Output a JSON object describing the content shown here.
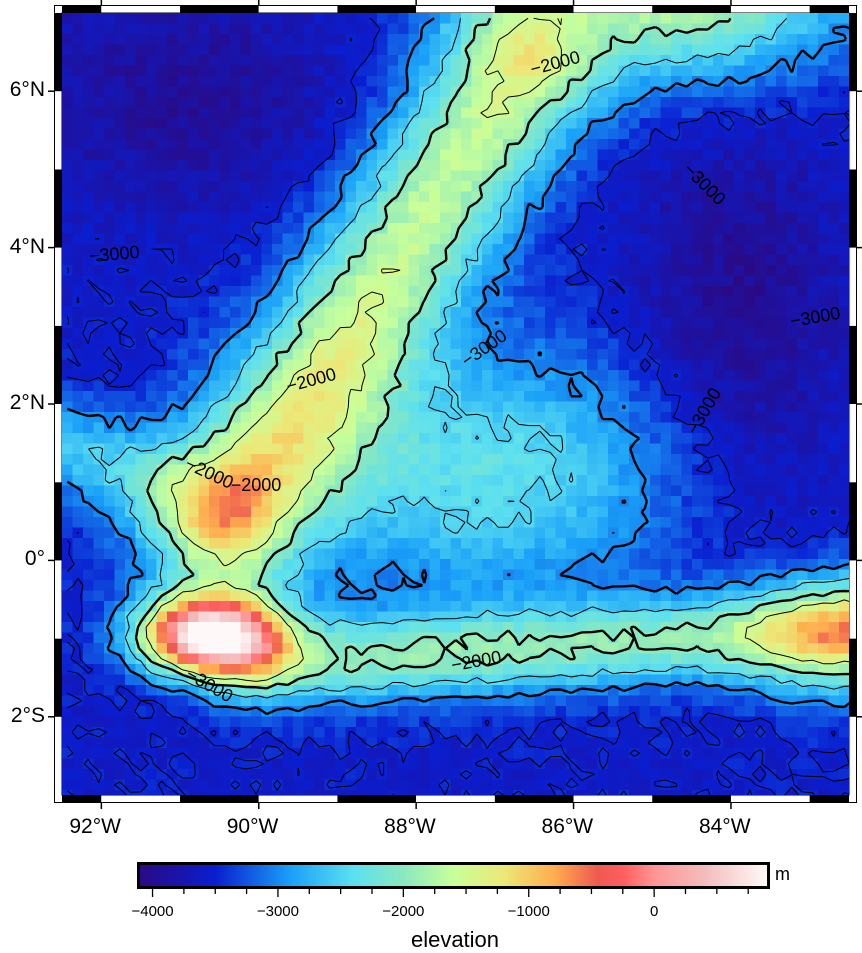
{
  "map": {
    "region": {
      "lon_min": -92.5,
      "lon_max": -82.5,
      "lat_min": -3,
      "lat_max": 7
    },
    "x_ticks": [
      {
        "lon": -92,
        "label": "92°W"
      },
      {
        "lon": -90,
        "label": "90°W"
      },
      {
        "lon": -88,
        "label": "88°W"
      },
      {
        "lon": -86,
        "label": "86°W"
      },
      {
        "lon": -84,
        "label": "84°W"
      }
    ],
    "y_ticks": [
      {
        "lat": 6,
        "label": "6°N"
      },
      {
        "lat": 4,
        "label": "4°N"
      },
      {
        "lat": 2,
        "label": "2°N"
      },
      {
        "lat": 0,
        "label": "0°"
      },
      {
        "lat": -2,
        "label": "2°S"
      }
    ],
    "contour_labels": [
      {
        "text": "−2000",
        "lon": -86.2,
        "lat": 6.35,
        "angle": -15
      },
      {
        "text": "−3000",
        "lon": -84.3,
        "lat": 4.8,
        "angle": 45
      },
      {
        "text": "−3000",
        "lon": -91.8,
        "lat": 3.9,
        "angle": -5
      },
      {
        "text": "−3000",
        "lon": -87.1,
        "lat": 2.7,
        "angle": -35
      },
      {
        "text": "−3000",
        "lon": -82.9,
        "lat": 3.1,
        "angle": -10
      },
      {
        "text": "−3000",
        "lon": -84.3,
        "lat": 1.9,
        "angle": -60
      },
      {
        "text": "−2000",
        "lon": -89.3,
        "lat": 2.3,
        "angle": -15
      },
      {
        "text": "−2000",
        "lon": -90.6,
        "lat": 1.1,
        "angle": 25
      },
      {
        "text": "−2000",
        "lon": -90.0,
        "lat": 0.95,
        "angle": 0
      },
      {
        "text": "−3000",
        "lon": -90.6,
        "lat": -1.6,
        "angle": 30
      },
      {
        "text": "−2000",
        "lon": -87.2,
        "lat": -1.3,
        "angle": -10
      }
    ],
    "contour_levels": [
      -3500,
      -3000,
      -2500,
      -2000,
      -1500
    ]
  },
  "colorbar": {
    "label": "elevation",
    "unit": "m",
    "range": [
      -4100,
      900
    ],
    "ticks": [
      {
        "value": -4000,
        "label": "−4000"
      },
      {
        "value": -3000,
        "label": "−3000"
      },
      {
        "value": -2000,
        "label": "−2000"
      },
      {
        "value": -1000,
        "label": "−1000"
      },
      {
        "value": 0,
        "label": "0"
      }
    ],
    "colors": [
      {
        "value": -4100,
        "color": "#2a0a84"
      },
      {
        "value": -3500,
        "color": "#0a1ed0"
      },
      {
        "value": -2900,
        "color": "#1aa0f8"
      },
      {
        "value": -2400,
        "color": "#5ce0f0"
      },
      {
        "value": -2000,
        "color": "#8ae8c0"
      },
      {
        "value": -1600,
        "color": "#c8ff9a"
      },
      {
        "value": -1200,
        "color": "#ece878"
      },
      {
        "value": -800,
        "color": "#ffae50"
      },
      {
        "value": -450,
        "color": "#ee5a50"
      },
      {
        "value": -250,
        "color": "#ff5e5e"
      },
      {
        "value": 0,
        "color": "#ff9494"
      },
      {
        "value": 400,
        "color": "#f4bcbc"
      },
      {
        "value": 900,
        "color": "#fff8f8"
      }
    ]
  }
}
